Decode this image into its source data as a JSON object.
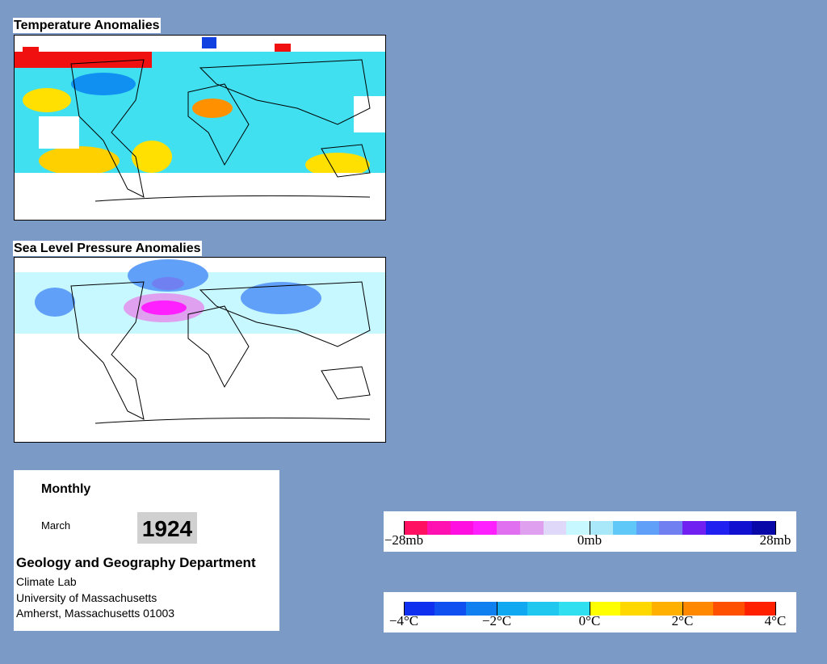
{
  "temperature_map": {
    "title": "Temperature Anomalies"
  },
  "pressure_map": {
    "title": "Sea Level Pressure Anomalies"
  },
  "info": {
    "period": "Monthly",
    "month": "March",
    "year": "1924",
    "department": "Geology and Geography Department",
    "address": [
      "Climate Lab",
      "University of Massachusetts",
      "Amherst, Massachusetts 01003"
    ]
  },
  "pressure_scale": {
    "labels": [
      "−28mb",
      "0mb",
      "28mb"
    ],
    "colors": [
      "#ff1060",
      "#ff10b0",
      "#ff10e0",
      "#ff20ff",
      "#e070f0",
      "#e0a0f0",
      "#e0d8f8",
      "#c8f8ff",
      "#a8e8f8",
      "#60c8f8",
      "#60a0f8",
      "#7080f0",
      "#7020f0",
      "#2020f0",
      "#1010d0",
      "#0808a8"
    ]
  },
  "temperature_scale": {
    "labels": [
      "−4°C",
      "−2°C",
      "0°C",
      "2°C",
      "4°C"
    ],
    "colors": [
      "#1030f0",
      "#1050f0",
      "#1080f0",
      "#10a8f0",
      "#20c8f0",
      "#30e0f0",
      "#ffff00",
      "#ffd800",
      "#ffb000",
      "#ff8800",
      "#ff5000",
      "#ff2000"
    ]
  }
}
